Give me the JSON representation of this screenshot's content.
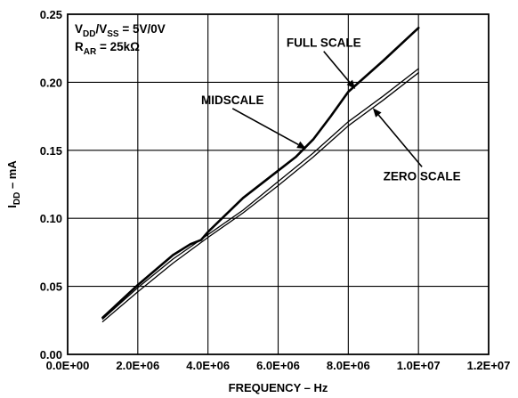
{
  "chart_data": {
    "type": "line",
    "title": "",
    "xlabel": "FREQUENCY – Hz",
    "ylabel": {
      "main": "I",
      "sub": "DD",
      "suffix": " – mA"
    },
    "xlim": [
      0,
      12000000
    ],
    "ylim": [
      0,
      0.25
    ],
    "grid": true,
    "x_ticks": [
      0,
      2000000,
      4000000,
      6000000,
      8000000,
      10000000,
      12000000
    ],
    "x_tick_labels": [
      "0.0E+00",
      "2.0E+06",
      "4.0E+06",
      "6.0E+06",
      "8.0E+06",
      "1.0E+07",
      "1.2E+07"
    ],
    "y_ticks": [
      0,
      0.05,
      0.1,
      0.15,
      0.2,
      0.25
    ],
    "y_tick_labels": [
      "0.00",
      "0.05",
      "0.10",
      "0.15",
      "0.20",
      "0.25"
    ],
    "conditions": [
      [
        {
          "t": "V"
        },
        {
          "t": "DD",
          "sub": true
        },
        {
          "t": "/V"
        },
        {
          "t": "SS",
          "sub": true
        },
        {
          "t": " = 5V/0V"
        }
      ],
      [
        {
          "t": "R"
        },
        {
          "t": "AR",
          "sub": true
        },
        {
          "t": " = 25kΩ"
        }
      ]
    ],
    "series": [
      {
        "name": "FULL SCALE",
        "stroke": 2.6,
        "x": [
          1000000,
          2000000,
          3000000,
          3500000,
          3800000,
          4000000,
          5000000,
          6000000,
          6500000,
          7000000,
          7500000,
          8000000,
          9000000,
          10000000
        ],
        "y": [
          0.027,
          0.051,
          0.073,
          0.081,
          0.084,
          0.09,
          0.115,
          0.135,
          0.145,
          0.158,
          0.175,
          0.193,
          0.216,
          0.24
        ]
      },
      {
        "name": "MIDSCALE",
        "stroke": 1.3,
        "x": [
          1000000,
          2000000,
          3000000,
          4000000,
          5000000,
          6000000,
          7000000,
          8000000,
          9000000,
          10000000
        ],
        "y": [
          0.026,
          0.049,
          0.07,
          0.088,
          0.106,
          0.127,
          0.148,
          0.171,
          0.19,
          0.21
        ]
      },
      {
        "name": "ZERO SCALE",
        "stroke": 1.3,
        "x": [
          1000000,
          2000000,
          3000000,
          4000000,
          5000000,
          6000000,
          7000000,
          8000000,
          9000000,
          10000000
        ],
        "y": [
          0.024,
          0.046,
          0.067,
          0.086,
          0.104,
          0.124,
          0.145,
          0.168,
          0.187,
          0.207
        ]
      }
    ],
    "annotations": [
      {
        "text": "FULL SCALE",
        "target_series": "FULL SCALE",
        "target": [
          8200000,
          0.195
        ],
        "label_at": [
          7300000,
          0.226
        ]
      },
      {
        "text": "MIDSCALE",
        "target_series": "MIDSCALE",
        "target": [
          6800000,
          0.151
        ],
        "label_at": [
          4700000,
          0.184
        ]
      },
      {
        "text": "ZERO SCALE",
        "target_series": "ZERO SCALE",
        "target": [
          8700000,
          0.181
        ],
        "label_at": [
          10100000,
          0.128
        ]
      }
    ]
  }
}
